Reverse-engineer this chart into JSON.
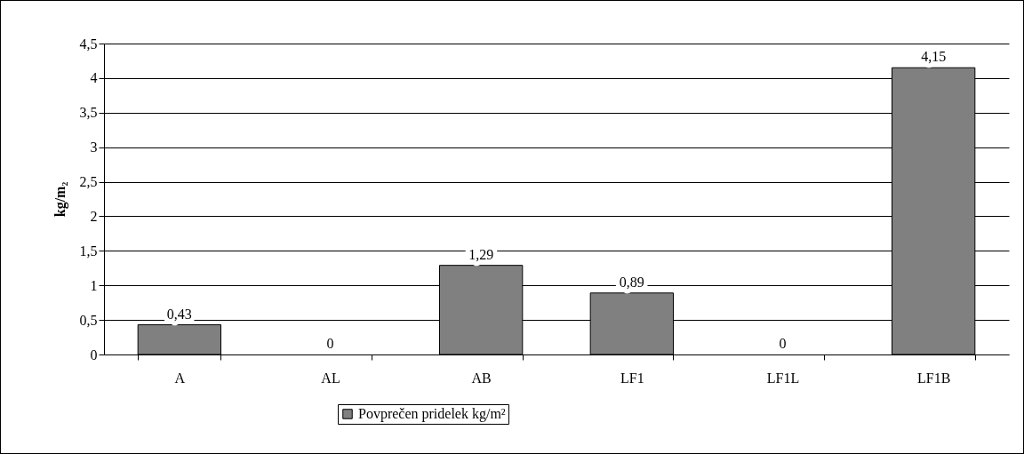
{
  "chart_data": {
    "type": "bar",
    "ylabel": "kg/m₂",
    "categories": [
      "A",
      "AL",
      "AB",
      "LF1",
      "LF1L",
      "LF1B"
    ],
    "series": [
      {
        "name": "Povprečen pridelek kg/m²",
        "color": "#808080",
        "values": [
          0.43,
          0,
          1.29,
          0.89,
          0,
          4.15
        ],
        "value_labels": [
          "0,43",
          "0",
          "1,29",
          "0,89",
          "0",
          "4,15"
        ]
      }
    ],
    "ylim": [
      0,
      4.5
    ],
    "yticks": [
      0,
      {
        "value": 0.5,
        "label": "0,5"
      },
      1,
      {
        "value": 1.5,
        "label": "1,5"
      },
      2,
      {
        "value": 2.5,
        "label": "2,5"
      },
      3,
      {
        "value": 3.5,
        "label": "3,5"
      },
      4,
      {
        "value": 4.5,
        "label": "4,5"
      }
    ],
    "grid": "y",
    "legend": "bottom"
  }
}
